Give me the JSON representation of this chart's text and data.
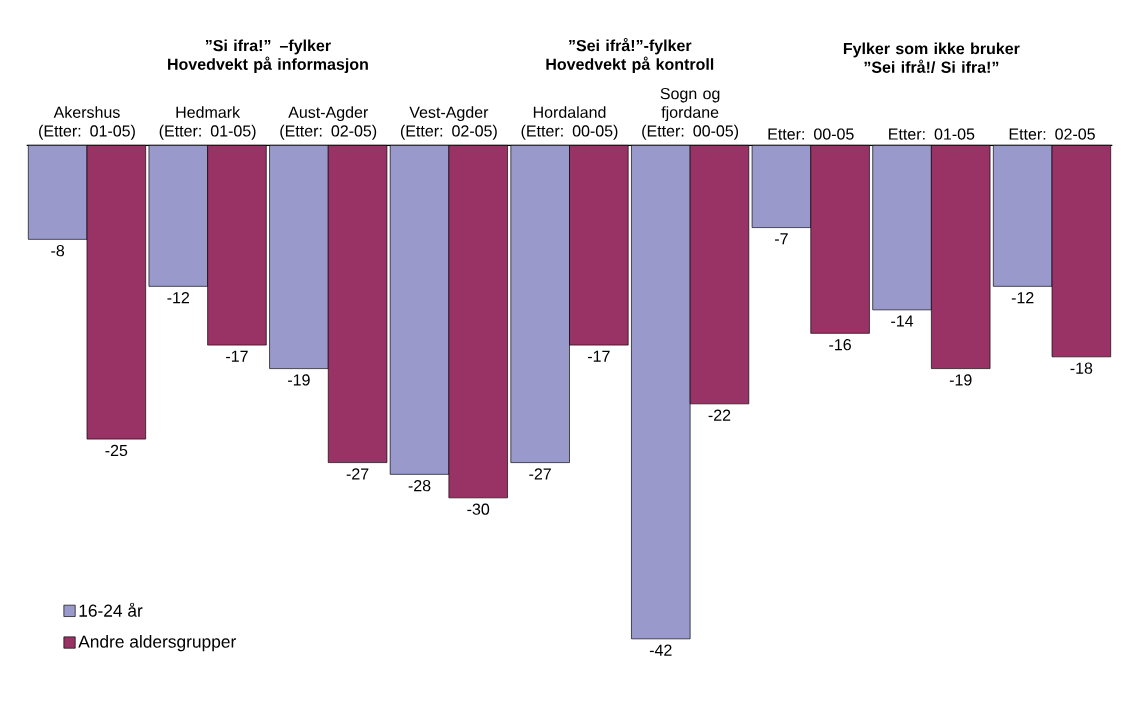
{
  "chart_data": {
    "type": "bar",
    "categories": [
      "Akershus (Etter: 01-05)",
      "Hedmark (Etter: 01-05)",
      "Aust-Agder (Etter: 02-05)",
      "Vest-Agder (Etter: 02-05)",
      "Hordaland (Etter: 00-05)",
      "Sogn og fjordane (Etter: 00-05)",
      "Etter: 00-05",
      "Etter: 01-05",
      "Etter: 02-05"
    ],
    "series": [
      {
        "name": "16-24 år",
        "color": "#9999cc",
        "values": [
          -8,
          -12,
          -19,
          -28,
          -27,
          -42,
          -7,
          -14,
          -12
        ]
      },
      {
        "name": "Andre aldersgrupper",
        "color": "#993366",
        "values": [
          -25,
          -17,
          -27,
          -30,
          -17,
          -22,
          -16,
          -19,
          -18
        ]
      }
    ],
    "data_labels": true,
    "legend": "bottom left",
    "annotations": [
      "”Si ifra!” –fylker Hovedvekt på informasjon",
      "”Sei ifrå!”-fylker Hovedvekt på kontroll",
      "Fylker som ikke bruker ”Sei ifrå!/ Si ifra!”"
    ]
  }
}
